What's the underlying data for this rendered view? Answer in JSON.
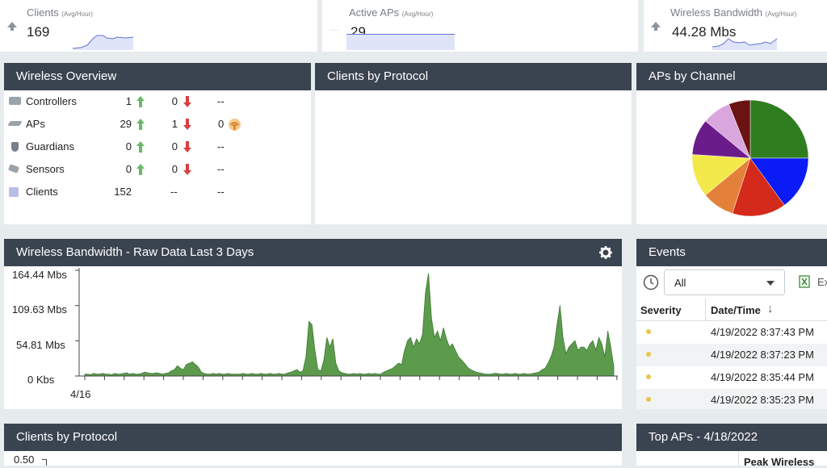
{
  "kpis": {
    "clients": {
      "title": "Clients",
      "sub": "(Avg/Hour)",
      "value": "169"
    },
    "active_aps": {
      "title": "Active APs",
      "sub": "(Avg/Hour)",
      "value": "29"
    },
    "bandwidth": {
      "title": "Wireless Bandwidth",
      "sub": "(Avg/Hour)",
      "value": "44.28 Mbs"
    }
  },
  "wireless_overview": {
    "title": "Wireless Overview",
    "rows": [
      {
        "label": "Controllers",
        "count": "1",
        "down": "0",
        "extra": "--"
      },
      {
        "label": "APs",
        "count": "29",
        "down": "1",
        "extra": "0"
      },
      {
        "label": "Guardians",
        "count": "0",
        "down": "0",
        "extra": "--"
      },
      {
        "label": "Sensors",
        "count": "0",
        "down": "0",
        "extra": "--"
      },
      {
        "label": "Clients",
        "count": "152",
        "down": "--",
        "extra": "--"
      }
    ]
  },
  "clients_by_protocol_top": {
    "title": "Clients by Protocol"
  },
  "aps_by_channel": {
    "title": "APs by Channel",
    "colors": [
      "#2e7d1f",
      "#0a1bf5",
      "#d42a1c",
      "#e3803a",
      "#f4e94a",
      "#6b1c8b",
      "#d9a6de",
      "#6b1212"
    ]
  },
  "bandwidth_chart": {
    "title": "Wireless Bandwidth - Raw Data Last 3 Days",
    "settings_icon": "gear-icon",
    "y_ticks": [
      "164.44 Mbs",
      "109.63 Mbs",
      "54.81 Mbs",
      "0 Kbs"
    ],
    "x_label": "4/16",
    "fill_color": "#5c9a4c"
  },
  "events": {
    "title": "Events",
    "filter_value": "All",
    "export_label": "Ex",
    "col_severity": "Severity",
    "col_datetime": "Date/Time",
    "rows": [
      {
        "date": "4/19/2022 8:37:43 PM"
      },
      {
        "date": "4/19/2022 8:37:23 PM"
      },
      {
        "date": "4/19/2022 8:35:44 PM"
      },
      {
        "date": "4/19/2022 8:35:23 PM"
      }
    ]
  },
  "clients_by_protocol_bottom": {
    "title": "Clients by Protocol",
    "y_tick": "0.50"
  },
  "top_aps": {
    "title": "Top APs - 4/18/2022",
    "col_peak": "Peak Wireless"
  },
  "chart_data": {
    "type": "area",
    "title": "Wireless Bandwidth - Raw Data Last 3 Days",
    "xlabel": "",
    "ylabel": "",
    "ylim": [
      0,
      164.44
    ],
    "y_unit": "Mbs",
    "x_start_label": "4/16",
    "series": [
      {
        "values": [
          3,
          3,
          2,
          4,
          3,
          3,
          4,
          3,
          3,
          2,
          4,
          3,
          3,
          4,
          5,
          3,
          4,
          3,
          3,
          4,
          6,
          5,
          4,
          4,
          5,
          4,
          3,
          4,
          5,
          8,
          10,
          16,
          12,
          10,
          18,
          20,
          22,
          18,
          14,
          6,
          4,
          3,
          3,
          4,
          3,
          4,
          3,
          3,
          4,
          3,
          3,
          3,
          3,
          4,
          3,
          3,
          4,
          3,
          3,
          4,
          3,
          3,
          4,
          3,
          3,
          4,
          3,
          3,
          5,
          6,
          8,
          10,
          6,
          8,
          30,
          85,
          80,
          40,
          10,
          8,
          25,
          60,
          45,
          58,
          20,
          8,
          5,
          4,
          3,
          3,
          4,
          3,
          4,
          3,
          3,
          4,
          3,
          4,
          3,
          3,
          6,
          8,
          10,
          12,
          16,
          20,
          18,
          40,
          55,
          60,
          45,
          58,
          50,
          65,
          130,
          160,
          90,
          60,
          70,
          55,
          75,
          58,
          45,
          50,
          40,
          30,
          25,
          20,
          14,
          10,
          8,
          6,
          5,
          4,
          3,
          3,
          3,
          4,
          4,
          3,
          3,
          4,
          3,
          3,
          4,
          3,
          3,
          4,
          3,
          3,
          4,
          5,
          6,
          10,
          12,
          20,
          30,
          45,
          80,
          110,
          60,
          35,
          45,
          50,
          55,
          40,
          45,
          45,
          40,
          50,
          55,
          40,
          60,
          50,
          30,
          70,
          45,
          15
        ]
      }
    ]
  }
}
